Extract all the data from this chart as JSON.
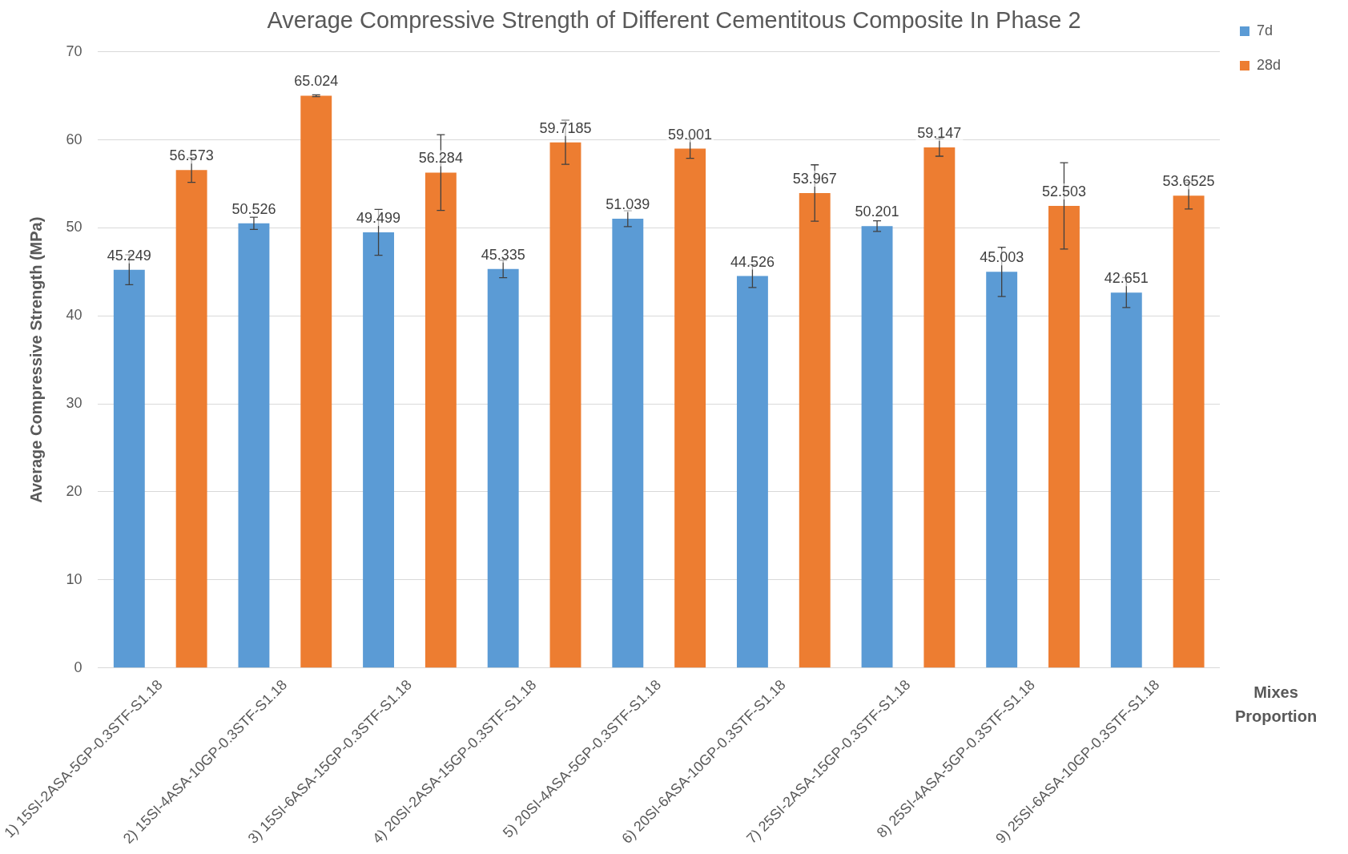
{
  "chart_data": {
    "type": "bar",
    "title": "Average Compressive Strength of Different Cementitous Composite In Phase 2",
    "xlabel": "Mixes Proportion",
    "ylabel": "Average Compressive Strength (MPa)",
    "categories": [
      "1) 15SI-2ASA-5GP-0.3STF-S1.18",
      "2) 15SI-4ASA-10GP-0.3STF-S1.18",
      "3) 15SI-6ASA-15GP-0.3STF-S1.18",
      "4) 20SI-2ASA-15GP-0.3STF-S1.18",
      "5) 20SI-4ASA-5GP-0.3STF-S1.18",
      "6) 20SI-6ASA-10GP-0.3STF-S1.18",
      "7) 25SI-2ASA-15GP-0.3STF-S1.18",
      "8) 25SI-4ASA-5GP-0.3STF-S1.18",
      "9) 25SI-6ASA-10GP-0.3STF-S1.18"
    ],
    "series": [
      {
        "name": "7d",
        "color": "#5b9bd5",
        "values": [
          45.249,
          50.526,
          49.499,
          45.335,
          51.039,
          44.526,
          50.201,
          45.003,
          42.651
        ],
        "errors": [
          1.7,
          0.7,
          2.6,
          1.0,
          0.9,
          1.3,
          0.6,
          2.8,
          1.7
        ]
      },
      {
        "name": "28d",
        "color": "#ed7d31",
        "values": [
          56.573,
          65.024,
          56.284,
          59.7185,
          59.001,
          53.967,
          59.147,
          52.503,
          53.6525
        ],
        "errors": [
          1.4,
          0.1,
          4.3,
          2.5,
          1.1,
          3.2,
          1.0,
          4.9,
          1.5
        ]
      }
    ],
    "ylim": [
      0,
      70
    ],
    "yticks": [
      0,
      10,
      20,
      30,
      40,
      50,
      60,
      70
    ],
    "grid": "y",
    "legend": "top right",
    "data_labels": true
  }
}
